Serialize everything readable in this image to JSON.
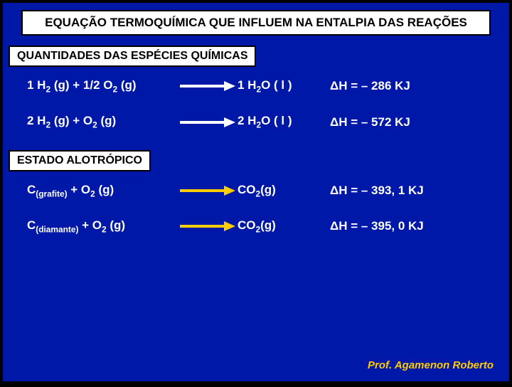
{
  "colors": {
    "background": "#0018a8",
    "box_bg": "#ffffff",
    "box_border": "#000000",
    "text_main": "#ffffff",
    "arrow_yellow": "#ffcc00",
    "footer": "#ffcc00"
  },
  "typography": {
    "title_fontsize": 17,
    "label_fontsize": 16,
    "eq_fontsize": 17,
    "footer_fontsize": 15,
    "weight": 900
  },
  "title": "EQUAÇÃO TERMOQUÍMICA QUE INFLUEM NA ENTALPIA DAS REAÇÕES",
  "section1_label": "QUANTIDADES DAS ESPÉCIES QUÍMICAS",
  "section2_label": "ESTADO ALOTRÓPICO",
  "equations": [
    {
      "reactants_html": "1 H<sub>2</sub> (g)  + 1/2 O<sub>2</sub> (g)",
      "arrow_color": "#ffffff",
      "products_html": "1  H<sub>2</sub>O ( l )",
      "dh": "ΔH = – 286 KJ"
    },
    {
      "reactants_html": "2 H<sub>2</sub> (g)  +  O<sub>2</sub> (g)",
      "arrow_color": "#ffffff",
      "products_html": "2  H<sub>2</sub>O ( l )",
      "dh": "ΔH = – 572 KJ"
    },
    {
      "reactants_html": "C<sub>(grafite)</sub> +  O<sub>2</sub> (g)",
      "arrow_color": "#ffcc00",
      "products_html": "CO<sub>2</sub>(g)",
      "dh": "ΔH = – 393, 1 KJ"
    },
    {
      "reactants_html": "C<sub>(diamante)</sub> +  O<sub>2</sub> (g)",
      "arrow_color": "#ffcc00",
      "products_html": "CO<sub>2</sub>(g)",
      "dh": "ΔH = – 395, 0 KJ"
    }
  ],
  "footer": "Prof. Agamenon Roberto"
}
